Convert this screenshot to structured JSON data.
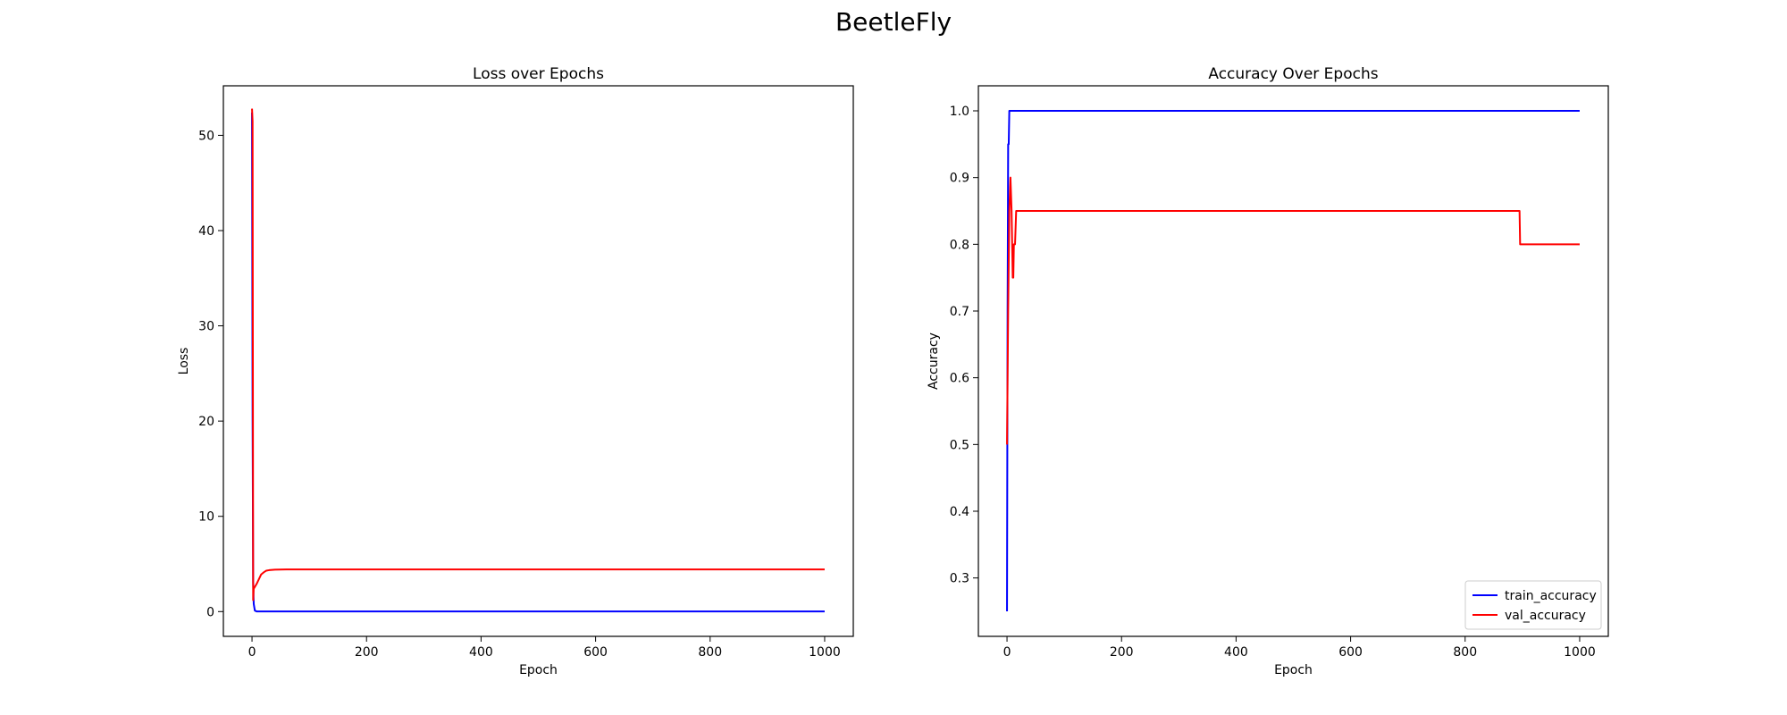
{
  "figure": {
    "title": "BeetleFly"
  },
  "chart_data": [
    {
      "type": "line",
      "title": "Loss over Epochs",
      "xlabel": "Epoch",
      "ylabel": "Loss",
      "xlim": [
        -50,
        1050
      ],
      "ylim": [
        -2.6,
        55.2
      ],
      "xticks": [
        0,
        200,
        400,
        600,
        800,
        1000
      ],
      "yticks": [
        0,
        10,
        20,
        30,
        40,
        50
      ],
      "grid": false,
      "legend": null,
      "series": [
        {
          "color": "#0000ff",
          "x": [
            0,
            1,
            2,
            3,
            5,
            8,
            1000
          ],
          "y": [
            52.4,
            20.0,
            3.0,
            0.8,
            0.1,
            0.02,
            0.02
          ]
        },
        {
          "color": "#ff0000",
          "x": [
            0,
            1,
            2,
            3,
            5,
            8,
            12,
            16,
            20,
            25,
            30,
            40,
            60,
            100,
            1000
          ],
          "y": [
            52.8,
            51.5,
            1.2,
            2.4,
            2.6,
            2.9,
            3.4,
            3.9,
            4.1,
            4.3,
            4.35,
            4.4,
            4.42,
            4.42,
            4.42
          ]
        }
      ]
    },
    {
      "type": "line",
      "title": "Accuracy Over Epochs",
      "xlabel": "Epoch",
      "ylabel": "Accuracy",
      "xlim": [
        -50,
        1050
      ],
      "ylim": [
        0.2125,
        1.0375
      ],
      "xticks": [
        0,
        200,
        400,
        600,
        800,
        1000
      ],
      "yticks": [
        0.3,
        0.4,
        0.5,
        0.6,
        0.7,
        0.8,
        0.9,
        1.0
      ],
      "yticklabels": [
        "0.3",
        "0.4",
        "0.5",
        "0.6",
        "0.7",
        "0.8",
        "0.9",
        "1.0"
      ],
      "grid": false,
      "legend": "lower right",
      "series": [
        {
          "name": "train_accuracy",
          "color": "#0000ff",
          "x": [
            0,
            1,
            2,
            3,
            4,
            5,
            1000
          ],
          "y": [
            0.25,
            0.7,
            0.95,
            0.95,
            1.0,
            1.0,
            1.0
          ]
        },
        {
          "name": "val_accuracy",
          "color": "#ff0000",
          "x": [
            0,
            2,
            4,
            6,
            8,
            10,
            11,
            12,
            14,
            16,
            17,
            895,
            896,
            1000
          ],
          "y": [
            0.5,
            0.7,
            0.85,
            0.9,
            0.85,
            0.75,
            0.75,
            0.8,
            0.8,
            0.85,
            0.85,
            0.85,
            0.8,
            0.8
          ]
        }
      ]
    }
  ]
}
